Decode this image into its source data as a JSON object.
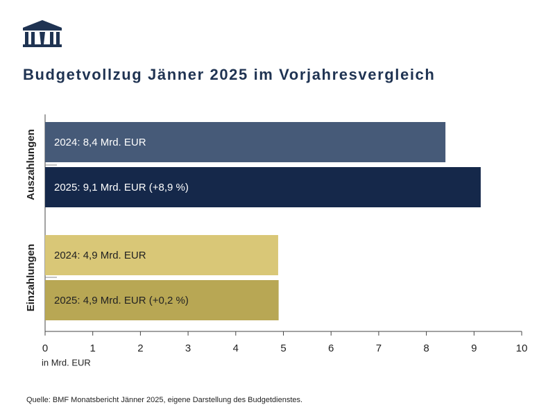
{
  "chart_data": {
    "type": "bar",
    "orientation": "horizontal",
    "title": "Budgetvollzug Jänner 2025 im Vorjahresvergleich",
    "categories": [
      "Auszahlungen",
      "Einzahlungen"
    ],
    "series": [
      {
        "colors": [
          "#465a78",
          "#d9c777"
        ],
        "values": [
          8.4,
          4.89
        ],
        "value_labels": [
          "2024: 8,4 Mrd. EUR",
          "2024: 4,9 Mrd. EUR"
        ]
      },
      {
        "colors": [
          "#15284a",
          "#b8a754"
        ],
        "values": [
          9.14,
          4.9
        ],
        "value_labels": [
          "2025: 9,1 Mrd. EUR (+8,9 %)",
          "2025: 4,9 Mrd. EUR (+0,2 %)"
        ]
      }
    ],
    "xlabel": "in Mrd. EUR",
    "xlim": [
      0,
      10
    ],
    "xticks": [
      0,
      1,
      2,
      3,
      4,
      5,
      6,
      7,
      8,
      9,
      10
    ],
    "source": "Quelle: BMF Monatsbericht Jänner 2025, eigene Darstellung des Budgetdienstes."
  }
}
